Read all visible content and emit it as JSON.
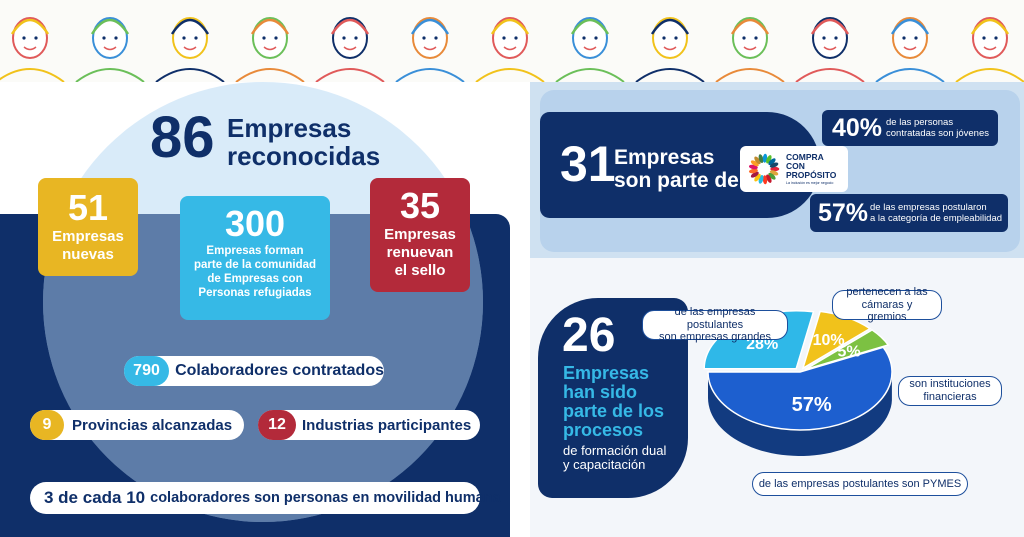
{
  "header": {
    "illustration": "people-illustration-banner"
  },
  "total": {
    "number": "86",
    "label_line1": "Empresas",
    "label_line2": "reconocidas"
  },
  "card_nuevas": {
    "number": "51",
    "label_line1": "Empresas",
    "label_line2": "nuevas",
    "color": "#e8b623"
  },
  "card_refugiadas": {
    "number": "300",
    "label_line1": "Empresas forman",
    "label_line2": "parte de la comunidad",
    "label_line3": "de Empresas con",
    "label_line4": "Personas refugiadas",
    "color": "#36b9e6"
  },
  "card_renuevan": {
    "number": "35",
    "label_line1": "Empresas",
    "label_line2": "renuevan",
    "label_line3": "el sello",
    "color": "#b32a3a"
  },
  "stats": {
    "colaboradores": {
      "number": "790",
      "label": "Colaboradores contratados",
      "color": "#36b9e6"
    },
    "provincias": {
      "number": "9",
      "label": "Provincias alcanzadas",
      "color": "#e8b623"
    },
    "industrias": {
      "number": "12",
      "label": "Industrias participantes",
      "color": "#b32a3a"
    },
    "movilidad": {
      "number_prefix": "3 de cada 10",
      "label": "colaboradores son personas en movilidad humana"
    }
  },
  "compra": {
    "number": "31",
    "label_line1": "Empresas",
    "label_line2": "son parte de",
    "logo_line1": "COMPRA",
    "logo_line2": "CON",
    "logo_line3": "PROPÓSITO",
    "logo_tagline": "La inclusión es mejor negocio",
    "stat1": {
      "number": "40%",
      "line1": "de las personas",
      "line2": "contratadas son jóvenes"
    },
    "stat2": {
      "number": "57%",
      "line1": "de las empresas postularon",
      "line2": "a la categoría de empleabilidad"
    }
  },
  "formacion": {
    "number": "26",
    "line1": "Empresas",
    "line2": "han sido",
    "line3": "parte de los",
    "line4": "procesos",
    "line5": "de formación dual",
    "line6": "y capacitación"
  },
  "chart_data": {
    "type": "pie",
    "style": "3d",
    "categories": [
      "de las empresas postulantes son PYMES",
      "de las empresas postulantes son empresas grandes",
      "pertenecen a las cámaras y gremios",
      "son instituciones financieras"
    ],
    "values": [
      57,
      28,
      10,
      5
    ],
    "value_labels": [
      "57%",
      "28%",
      "10%",
      "5%"
    ],
    "colors": [
      "#1d5fcf",
      "#2fb8e8",
      "#f1c21b",
      "#7cc142"
    ],
    "callouts": {
      "grandes_line1": "de las empresas postulantes",
      "grandes_line2": "son empresas grandes",
      "gremios_line1": "pertenecen a las",
      "gremios_line2": "cámaras y gremios",
      "financieras_line1": "son instituciones",
      "financieras_line2": "financieras",
      "pymes": "de las empresas postulantes son PYMES"
    }
  }
}
